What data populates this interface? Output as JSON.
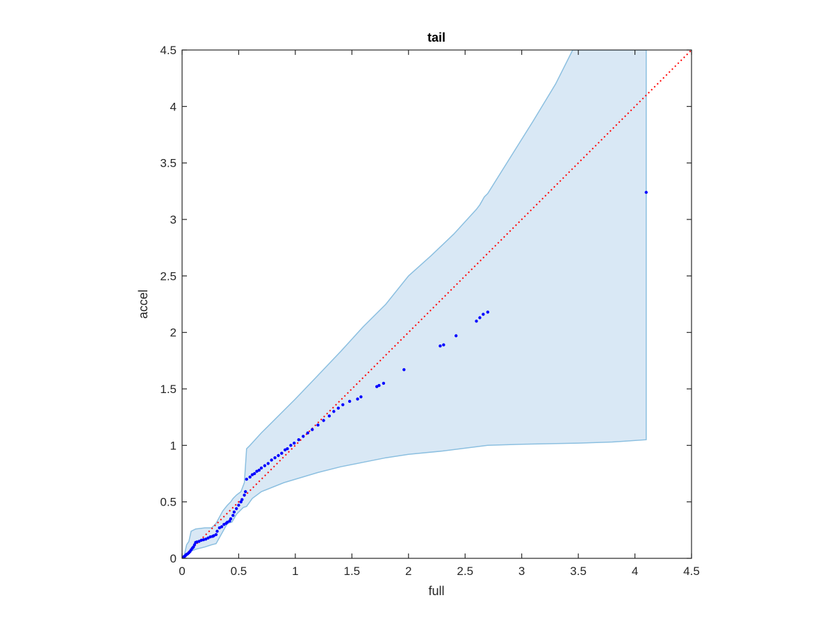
{
  "chart_data": {
    "type": "scatter",
    "title": "tail",
    "xlabel": "full",
    "ylabel": "accel",
    "xlim": [
      0,
      4.5
    ],
    "ylim": [
      0,
      4.5
    ],
    "xticks": [
      "0",
      "0.5",
      "1",
      "1.5",
      "2",
      "2.5",
      "3",
      "3.5",
      "4",
      "4.5"
    ],
    "yticks": [
      "0",
      "0.5",
      "1",
      "1.5",
      "2",
      "2.5",
      "3",
      "3.5",
      "4",
      "4.5"
    ],
    "grid": false,
    "reference_line": {
      "style": "dotted",
      "from": [
        0,
        0
      ],
      "to": [
        4.5,
        4.5
      ]
    },
    "band": {
      "upper": [
        [
          0,
          0
        ],
        [
          0.02,
          0.03
        ],
        [
          0.04,
          0.12
        ],
        [
          0.06,
          0.15
        ],
        [
          0.08,
          0.24
        ],
        [
          0.12,
          0.26
        ],
        [
          0.2,
          0.27
        ],
        [
          0.26,
          0.27
        ],
        [
          0.3,
          0.31
        ],
        [
          0.36,
          0.42
        ],
        [
          0.4,
          0.47
        ],
        [
          0.43,
          0.5
        ],
        [
          0.45,
          0.53
        ],
        [
          0.48,
          0.56
        ],
        [
          0.52,
          0.59
        ],
        [
          0.55,
          0.67
        ],
        [
          0.57,
          0.97
        ],
        [
          0.6,
          1.0
        ],
        [
          0.7,
          1.11
        ],
        [
          0.8,
          1.21
        ],
        [
          0.9,
          1.31
        ],
        [
          1.0,
          1.41
        ],
        [
          1.2,
          1.62
        ],
        [
          1.4,
          1.83
        ],
        [
          1.6,
          2.05
        ],
        [
          1.8,
          2.25
        ],
        [
          2.0,
          2.5
        ],
        [
          2.2,
          2.68
        ],
        [
          2.4,
          2.87
        ],
        [
          2.6,
          3.09
        ],
        [
          2.63,
          3.13
        ],
        [
          2.67,
          3.2
        ],
        [
          2.7,
          3.23
        ],
        [
          2.9,
          3.55
        ],
        [
          3.1,
          3.87
        ],
        [
          3.3,
          4.2
        ],
        [
          3.45,
          4.5
        ],
        [
          4.1,
          4.5
        ]
      ],
      "lower": [
        [
          4.1,
          1.05
        ],
        [
          3.8,
          1.03
        ],
        [
          3.5,
          1.02
        ],
        [
          3.0,
          1.01
        ],
        [
          2.7,
          1.0
        ],
        [
          2.3,
          0.95
        ],
        [
          2.0,
          0.92
        ],
        [
          1.8,
          0.89
        ],
        [
          1.6,
          0.85
        ],
        [
          1.4,
          0.81
        ],
        [
          1.2,
          0.76
        ],
        [
          1.0,
          0.7
        ],
        [
          0.9,
          0.67
        ],
        [
          0.8,
          0.63
        ],
        [
          0.7,
          0.59
        ],
        [
          0.62,
          0.53
        ],
        [
          0.57,
          0.46
        ],
        [
          0.54,
          0.45
        ],
        [
          0.48,
          0.39
        ],
        [
          0.44,
          0.32
        ],
        [
          0.4,
          0.31
        ],
        [
          0.3,
          0.13
        ],
        [
          0.26,
          0.12
        ],
        [
          0.2,
          0.1
        ],
        [
          0.12,
          0.08
        ],
        [
          0.07,
          0.06
        ],
        [
          0.04,
          0.03
        ],
        [
          0.02,
          0.01
        ],
        [
          0,
          0
        ]
      ]
    },
    "series": [
      {
        "points": [
          [
            0.002,
            0.002
          ],
          [
            0.005,
            0.004
          ],
          [
            0.008,
            0.007
          ],
          [
            0.012,
            0.01
          ],
          [
            0.016,
            0.014
          ],
          [
            0.02,
            0.016
          ],
          [
            0.025,
            0.02
          ],
          [
            0.03,
            0.025
          ],
          [
            0.035,
            0.03
          ],
          [
            0.04,
            0.035
          ],
          [
            0.05,
            0.04
          ],
          [
            0.06,
            0.05
          ],
          [
            0.07,
            0.06
          ],
          [
            0.08,
            0.075
          ],
          [
            0.09,
            0.09
          ],
          [
            0.1,
            0.1
          ],
          [
            0.11,
            0.12
          ],
          [
            0.12,
            0.14
          ],
          [
            0.13,
            0.145
          ],
          [
            0.15,
            0.15
          ],
          [
            0.17,
            0.16
          ],
          [
            0.19,
            0.165
          ],
          [
            0.21,
            0.17
          ],
          [
            0.23,
            0.18
          ],
          [
            0.25,
            0.19
          ],
          [
            0.27,
            0.195
          ],
          [
            0.28,
            0.2
          ],
          [
            0.3,
            0.21
          ],
          [
            0.31,
            0.24
          ],
          [
            0.33,
            0.27
          ],
          [
            0.35,
            0.28
          ],
          [
            0.37,
            0.3
          ],
          [
            0.39,
            0.31
          ],
          [
            0.4,
            0.32
          ],
          [
            0.42,
            0.33
          ],
          [
            0.43,
            0.35
          ],
          [
            0.45,
            0.38
          ],
          [
            0.46,
            0.41
          ],
          [
            0.48,
            0.44
          ],
          [
            0.5,
            0.47
          ],
          [
            0.52,
            0.5
          ],
          [
            0.53,
            0.52
          ],
          [
            0.55,
            0.56
          ],
          [
            0.56,
            0.59
          ],
          [
            0.57,
            0.7
          ],
          [
            0.6,
            0.72
          ],
          [
            0.62,
            0.74
          ],
          [
            0.64,
            0.75
          ],
          [
            0.66,
            0.77
          ],
          [
            0.68,
            0.78
          ],
          [
            0.7,
            0.8
          ],
          [
            0.73,
            0.82
          ],
          [
            0.76,
            0.84
          ],
          [
            0.79,
            0.87
          ],
          [
            0.82,
            0.89
          ],
          [
            0.85,
            0.91
          ],
          [
            0.88,
            0.93
          ],
          [
            0.91,
            0.96
          ],
          [
            0.93,
            0.97
          ],
          [
            0.96,
            1.0
          ],
          [
            0.99,
            1.02
          ],
          [
            1.03,
            1.05
          ],
          [
            1.07,
            1.08
          ],
          [
            1.11,
            1.11
          ],
          [
            1.15,
            1.14
          ],
          [
            1.2,
            1.18
          ],
          [
            1.25,
            1.22
          ],
          [
            1.3,
            1.26
          ],
          [
            1.34,
            1.3
          ],
          [
            1.38,
            1.33
          ],
          [
            1.42,
            1.36
          ],
          [
            1.48,
            1.39
          ],
          [
            1.55,
            1.41
          ],
          [
            1.58,
            1.43
          ],
          [
            1.72,
            1.52
          ],
          [
            1.74,
            1.53
          ],
          [
            1.78,
            1.55
          ],
          [
            1.96,
            1.67
          ],
          [
            2.28,
            1.88
          ],
          [
            2.31,
            1.89
          ],
          [
            2.42,
            1.97
          ],
          [
            2.6,
            2.1
          ],
          [
            2.63,
            2.13
          ],
          [
            2.66,
            2.16
          ],
          [
            2.7,
            2.18
          ],
          [
            4.1,
            3.24
          ]
        ]
      }
    ],
    "colors": {
      "points": "#0000ff",
      "band_fill": "#d9e8f5",
      "band_edge": "#8bbfe0",
      "reference_line": "#ff0000",
      "axes": "#262626"
    }
  }
}
